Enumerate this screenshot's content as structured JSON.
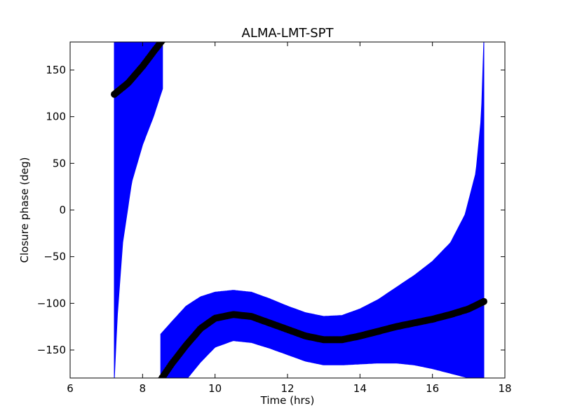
{
  "chart_data": {
    "type": "scatter",
    "title": "ALMA-LMT-SPT",
    "xlabel": "Time (hrs)",
    "ylabel": "Closure phase (deg)",
    "xlim": [
      6,
      18
    ],
    "ylim": [
      -180,
      180
    ],
    "x_ticks": [
      6,
      8,
      10,
      12,
      14,
      16,
      18
    ],
    "y_ticks": [
      150,
      100,
      50,
      0,
      -50,
      -100,
      -150
    ],
    "y_tick_labels": [
      "150",
      "100",
      "50",
      "0",
      "−50",
      "−100",
      "−150"
    ],
    "grid": false,
    "series": [
      {
        "marker": "circle",
        "color": "#000000",
        "error_bar_color": "#0000ff",
        "segments": [
          {
            "points": [
              [
                7.22,
                124
              ],
              [
                7.6,
                136
              ],
              [
                8.0,
                154
              ],
              [
                8.35,
                172
              ],
              [
                8.55,
                182
              ]
            ],
            "lower": [
              [
                7.22,
                -182
              ],
              [
                7.3,
                -115
              ],
              [
                7.45,
                -35
              ],
              [
                7.7,
                30
              ],
              [
                8.0,
                70
              ],
              [
                8.3,
                100
              ],
              [
                8.55,
                130
              ]
            ],
            "upper": [
              [
                7.22,
                182
              ],
              [
                8.55,
                182
              ]
            ]
          },
          {
            "points": [
              [
                8.5,
                -182
              ],
              [
                8.8,
                -165
              ],
              [
                9.2,
                -145
              ],
              [
                9.6,
                -127
              ],
              [
                10.0,
                -116
              ],
              [
                10.5,
                -112
              ],
              [
                11.0,
                -114
              ],
              [
                11.5,
                -121
              ],
              [
                12.0,
                -128
              ],
              [
                12.5,
                -135
              ],
              [
                13.0,
                -139
              ],
              [
                13.5,
                -139
              ],
              [
                14.0,
                -135
              ],
              [
                14.5,
                -130
              ],
              [
                15.0,
                -125
              ],
              [
                15.5,
                -121
              ],
              [
                16.0,
                -117
              ],
              [
                16.5,
                -112
              ],
              [
                17.0,
                -106
              ],
              [
                17.42,
                -98
              ]
            ],
            "lower": [
              [
                8.5,
                -182
              ],
              [
                9.2,
                -182
              ],
              [
                9.6,
                -163
              ],
              [
                10.0,
                -147
              ],
              [
                10.5,
                -140
              ],
              [
                11.0,
                -142
              ],
              [
                11.5,
                -148
              ],
              [
                12.0,
                -155
              ],
              [
                12.5,
                -162
              ],
              [
                13.0,
                -166
              ],
              [
                13.5,
                -166
              ],
              [
                14.0,
                -165
              ],
              [
                14.5,
                -164
              ],
              [
                15.0,
                -164
              ],
              [
                15.5,
                -166
              ],
              [
                16.0,
                -170
              ],
              [
                16.5,
                -175
              ],
              [
                17.0,
                -180
              ],
              [
                17.42,
                -182
              ]
            ],
            "upper": [
              [
                8.5,
                -133
              ],
              [
                8.8,
                -120
              ],
              [
                9.2,
                -103
              ],
              [
                9.6,
                -93
              ],
              [
                10.0,
                -88
              ],
              [
                10.5,
                -86
              ],
              [
                11.0,
                -88
              ],
              [
                11.5,
                -95
              ],
              [
                12.0,
                -103
              ],
              [
                12.5,
                -110
              ],
              [
                13.0,
                -114
              ],
              [
                13.5,
                -113
              ],
              [
                14.0,
                -106
              ],
              [
                14.5,
                -96
              ],
              [
                15.0,
                -83
              ],
              [
                15.5,
                -70
              ],
              [
                16.0,
                -55
              ],
              [
                16.5,
                -35
              ],
              [
                16.9,
                -5
              ],
              [
                17.2,
                40
              ],
              [
                17.35,
                100
              ],
              [
                17.42,
                182
              ]
            ]
          }
        ]
      }
    ]
  }
}
